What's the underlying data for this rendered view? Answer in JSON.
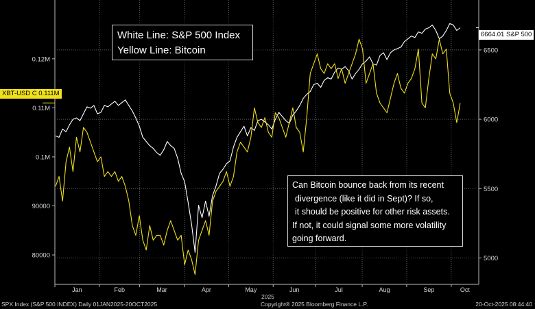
{
  "chart_data": {
    "type": "line",
    "title": "",
    "period": "01JAN2025-20OCT2025",
    "year_label": "2025",
    "months": [
      "Jan",
      "Feb",
      "Mar",
      "Apr",
      "May",
      "Jun",
      "Jul",
      "Aug",
      "Sep",
      "Oct"
    ],
    "left_axis": {
      "ticks": [
        {
          "v": 80000,
          "label": "80000"
        },
        {
          "v": 90000,
          "label": "90000"
        },
        {
          "v": 100000,
          "label": "0.1M"
        },
        {
          "v": 110000,
          "label": "0.11M"
        },
        {
          "v": 120000,
          "label": "0.12M"
        }
      ],
      "range": [
        74000,
        132000
      ]
    },
    "right_axis": {
      "ticks": [
        {
          "v": 5000,
          "label": "5000"
        },
        {
          "v": 5500,
          "label": "5500"
        },
        {
          "v": 6000,
          "label": "6000"
        },
        {
          "v": 6500,
          "label": "6500"
        }
      ],
      "range": [
        4810,
        6860
      ]
    },
    "series": [
      {
        "name": "S&P 500 Index",
        "color": "#ffffff",
        "axis": "right",
        "values": [
          5880,
          5870,
          5930,
          5910,
          5960,
          6000,
          6010,
          5990,
          6040,
          6090,
          6080,
          6100,
          6040,
          6050,
          6100,
          6090,
          6110,
          6130,
          6100,
          6120,
          6140,
          6100,
          6060,
          6010,
          5950,
          5870,
          5840,
          5810,
          5790,
          5760,
          5740,
          5780,
          5840,
          5810,
          5790,
          5720,
          5610,
          5550,
          5400,
          5240,
          5040,
          5380,
          5290,
          5410,
          5300,
          5450,
          5520,
          5610,
          5640,
          5680,
          5700,
          5800,
          5870,
          5910,
          5950,
          5880,
          5940,
          5920,
          5990,
          6000,
          5980,
          5960,
          5930,
          6000,
          6050,
          6020,
          5990,
          5970,
          6030,
          6060,
          6100,
          6150,
          6180,
          6200,
          6250,
          6260,
          6230,
          6280,
          6300,
          6290,
          6340,
          6370,
          6360,
          6380,
          6350,
          6290,
          6330,
          6360,
          6400,
          6420,
          6450,
          6400,
          6390,
          6460,
          6480,
          6430,
          6480,
          6500,
          6510,
          6520,
          6560,
          6580,
          6600,
          6590,
          6630,
          6620,
          6650,
          6660,
          6680,
          6640,
          6580,
          6600,
          6640,
          6690,
          6680,
          6640,
          6660
        ]
      },
      {
        "name": "Bitcoin",
        "color": "#f0e01c",
        "axis": "left",
        "values": [
          94000,
          96000,
          91000,
          99000,
          102000,
          97000,
          104000,
          101000,
          106000,
          105000,
          103000,
          101000,
          99000,
          100000,
          96000,
          97000,
          96000,
          97000,
          95000,
          96000,
          94000,
          91000,
          86000,
          84000,
          88000,
          83000,
          81000,
          86000,
          83000,
          84000,
          84000,
          82000,
          85000,
          87000,
          85000,
          83000,
          84000,
          78000,
          81000,
          79000,
          76000,
          83000,
          85000,
          87000,
          84000,
          91000,
          93000,
          94000,
          95000,
          97000,
          94000,
          96000,
          101000,
          103000,
          102000,
          101000,
          104000,
          110000,
          107000,
          106000,
          108000,
          105000,
          104000,
          109000,
          108000,
          106000,
          104000,
          107000,
          110000,
          106000,
          105000,
          101000,
          108000,
          117000,
          119000,
          121000,
          118000,
          117000,
          119000,
          118000,
          119000,
          116000,
          118000,
          115000,
          117000,
          119000,
          121000,
          124000,
          122000,
          115000,
          117000,
          119000,
          113000,
          111000,
          110000,
          109000,
          112000,
          115000,
          117000,
          114000,
          113000,
          115000,
          116000,
          118000,
          122000,
          111000,
          110000,
          116000,
          121000,
          120000,
          124000,
          121000,
          122000,
          113000,
          111000,
          107000,
          111000
        ]
      }
    ],
    "price_tags": {
      "bitcoin": "XBT-USD C 0.111M",
      "sp500": "6664.01 S&P 500 I"
    }
  },
  "legend": {
    "line1": "White Line:  S&P 500 Index",
    "line2": "Yellow Line:  Bitcoin"
  },
  "note": {
    "line1": "Can Bitcoin bounce back from its recent",
    "line2": "divergence (like it did in Sept)?  If so,",
    "line3": "it should be positive for other risk assets.",
    "line4": "If not, it could signal some more volatility",
    "line5": "going forward."
  },
  "footer": {
    "left": "SPX Index (S&P 500 INDEX) Daily 01JAN2025-20OCT2025",
    "center": "Copyright® 2025 Bloomberg Finance L.P.",
    "right": "20-Oct-2025 08:44:40"
  },
  "colors": {
    "grid": "#5a5a5a",
    "axis": "#bbbbbb"
  }
}
